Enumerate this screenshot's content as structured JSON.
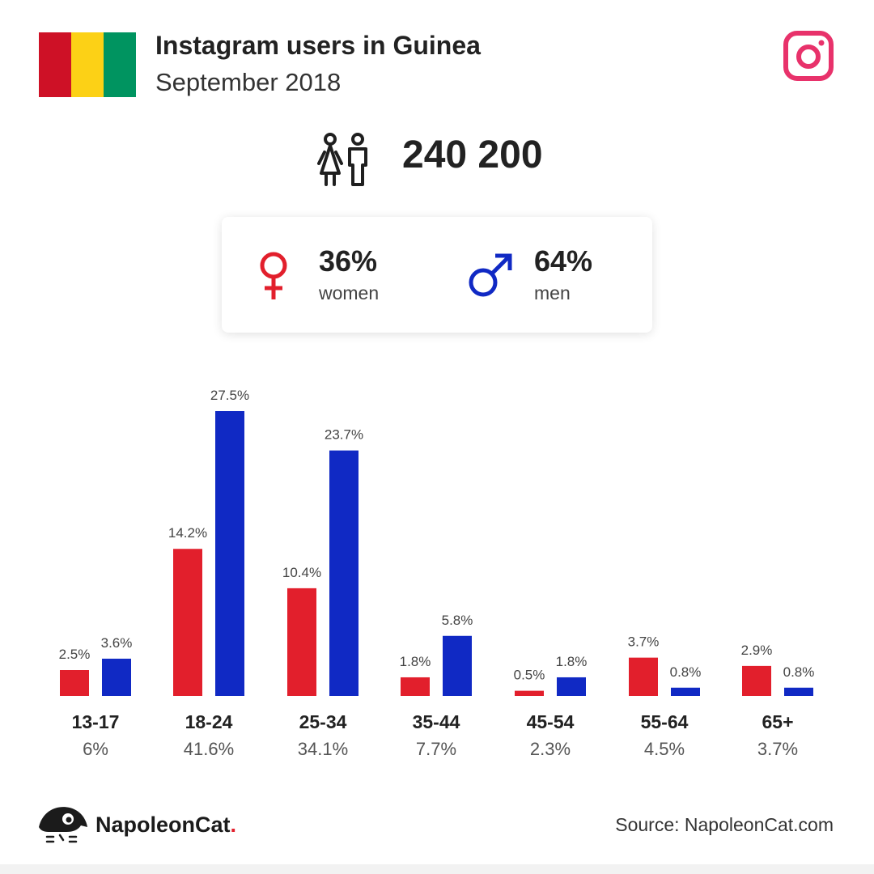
{
  "header": {
    "title": "Instagram users in Guinea",
    "subtitle": "September 2018",
    "flag_colors": [
      "#ce1126",
      "#fcd116",
      "#009460"
    ]
  },
  "total": {
    "value": "240 200",
    "icon": "people-icon"
  },
  "gender": {
    "women": {
      "percent": "36%",
      "label": "women",
      "color": "#e21f2c",
      "icon": "female-icon"
    },
    "men": {
      "percent": "64%",
      "label": "men",
      "color": "#1029c4",
      "icon": "male-icon"
    }
  },
  "colors": {
    "women": "#e21f2c",
    "men": "#1029c4",
    "instagram": "#e8326b"
  },
  "chart_data": {
    "type": "bar",
    "categories": [
      "13-17",
      "18-24",
      "25-34",
      "35-44",
      "45-54",
      "55-64",
      "65+"
    ],
    "category_totals": [
      "6%",
      "41.6%",
      "34.1%",
      "7.7%",
      "2.3%",
      "4.5%",
      "3.7%"
    ],
    "series": [
      {
        "values": [
          2.5,
          14.2,
          10.4,
          1.8,
          0.5,
          3.7,
          2.9
        ],
        "labels": [
          "2.5%",
          "14.2%",
          "10.4%",
          "1.8%",
          "0.5%",
          "3.7%",
          "2.9%"
        ],
        "color": "#e21f2c"
      },
      {
        "values": [
          3.6,
          27.5,
          23.7,
          5.8,
          1.8,
          0.8,
          0.8
        ],
        "labels": [
          "3.6%",
          "27.5%",
          "23.7%",
          "5.8%",
          "1.8%",
          "0.8%",
          "0.8%"
        ],
        "color": "#1029c4"
      }
    ],
    "grid": false
  },
  "footer": {
    "brand": "NapoleonCat",
    "brand_dot": ".",
    "source": "Source: NapoleonCat.com"
  }
}
